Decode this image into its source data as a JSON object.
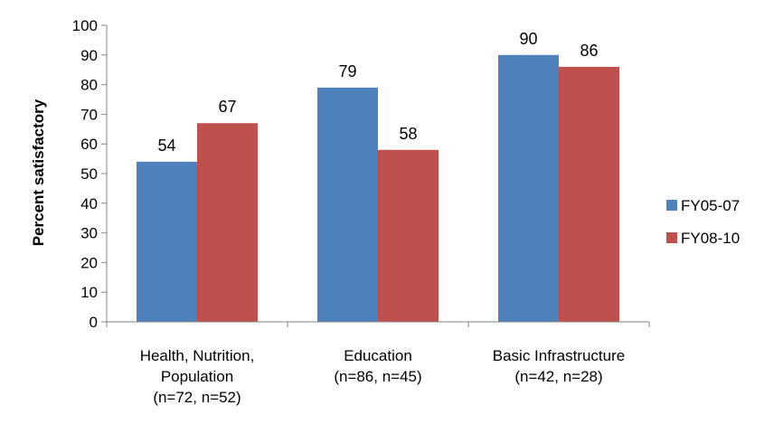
{
  "chart_data": {
    "type": "bar",
    "title": "",
    "xlabel": "",
    "ylabel": "Percent satisfactory",
    "ylim": [
      0,
      100
    ],
    "yticks": [
      0,
      10,
      20,
      30,
      40,
      50,
      60,
      70,
      80,
      90,
      100
    ],
    "grid": false,
    "legend_position": "right",
    "categories": [
      [
        "Health, Nutrition,",
        "Population",
        "(n=72, n=52)"
      ],
      [
        "Education",
        "(n=86, n=45)"
      ],
      [
        "Basic Infrastructure",
        "(n=42, n=28)"
      ]
    ],
    "series": [
      {
        "name": "FY05-07",
        "color": "#4F81BD",
        "values": [
          54,
          79,
          90
        ]
      },
      {
        "name": "FY08-10",
        "color": "#C0504D",
        "values": [
          67,
          58,
          86
        ]
      }
    ]
  }
}
